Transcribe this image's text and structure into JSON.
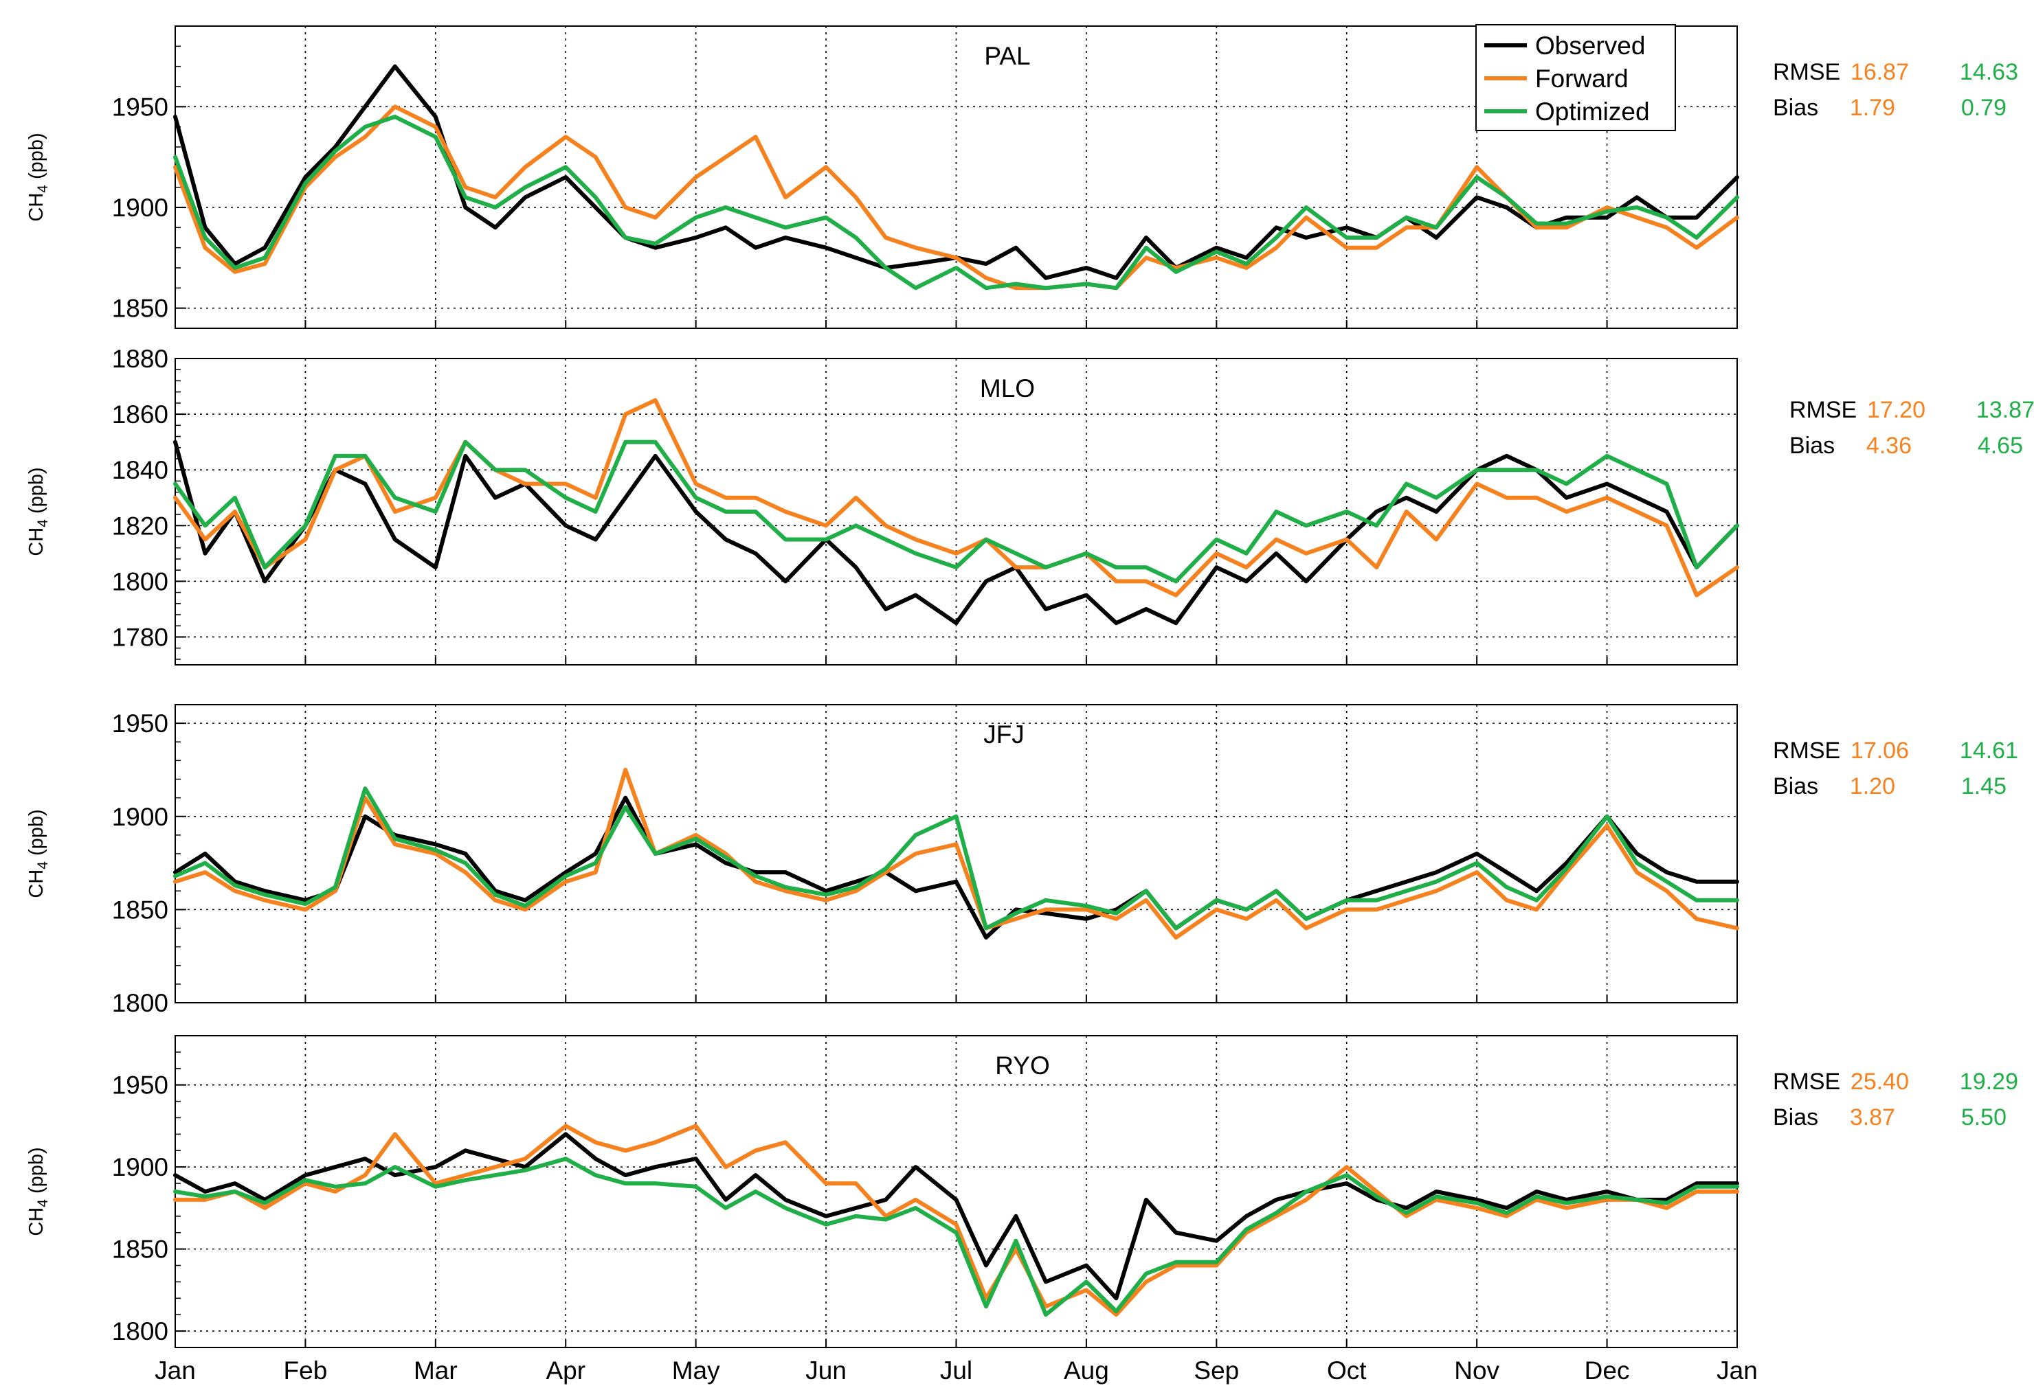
{
  "colors": {
    "observed": "#000000",
    "forward": "#f5821f",
    "optimized": "#1fae48"
  },
  "legend": {
    "observed": "Observed",
    "forward": "Forward",
    "optimized": "Optimized"
  },
  "stats_labels": {
    "rmse": "RMSE",
    "bias": "Bias"
  },
  "ylabel_prefix": "CH",
  "ylabel_sub": "4",
  "ylabel_suffix": " (ppb)",
  "chart_data": [
    {
      "type": "line",
      "title": "PAL",
      "x": [
        "Jan 1",
        "Jan 8",
        "Jan 15",
        "Jan 22",
        "Feb 1",
        "Feb 8",
        "Feb 15",
        "Feb 22",
        "Mar 1",
        "Mar 8",
        "Mar 15",
        "Mar 22",
        "Apr 1",
        "Apr 8",
        "Apr 15",
        "Apr 22",
        "May 1",
        "May 8",
        "May 15",
        "May 22",
        "Jun 1",
        "Jun 8",
        "Jun 15",
        "Jun 22",
        "Jul 1",
        "Jul 8",
        "Jul 15",
        "Jul 22",
        "Aug 1",
        "Aug 8",
        "Aug 15",
        "Aug 22",
        "Sep 1",
        "Sep 8",
        "Sep 15",
        "Sep 22",
        "Oct 1",
        "Oct 8",
        "Oct 15",
        "Oct 22",
        "Nov 1",
        "Nov 8",
        "Nov 15",
        "Nov 22",
        "Dec 1",
        "Dec 8",
        "Dec 15",
        "Dec 22",
        "Dec 31"
      ],
      "series": [
        {
          "name": "Observed",
          "values": [
            1945,
            1890,
            1872,
            1880,
            1915,
            1930,
            1950,
            1970,
            1945,
            1900,
            1890,
            1905,
            1915,
            1900,
            1885,
            1880,
            1885,
            1890,
            1880,
            1885,
            1880,
            1875,
            1870,
            1872,
            1875,
            1872,
            1880,
            1865,
            1870,
            1865,
            1885,
            1870,
            1880,
            1875,
            1890,
            1885,
            1890,
            1885,
            1895,
            1885,
            1905,
            1900,
            1890,
            1895,
            1895,
            1905,
            1895,
            1895,
            1915
          ]
        },
        {
          "name": "Forward",
          "values": [
            1920,
            1880,
            1868,
            1872,
            1910,
            1925,
            1935,
            1950,
            1940,
            1910,
            1905,
            1920,
            1935,
            1925,
            1900,
            1895,
            1915,
            1925,
            1935,
            1905,
            1920,
            1905,
            1885,
            1880,
            1875,
            1865,
            1860,
            1860,
            1862,
            1860,
            1875,
            1870,
            1875,
            1870,
            1880,
            1895,
            1880,
            1880,
            1890,
            1890,
            1920,
            1905,
            1890,
            1890,
            1900,
            1895,
            1890,
            1880,
            1895
          ]
        },
        {
          "name": "Optimized",
          "values": [
            1925,
            1885,
            1870,
            1875,
            1912,
            1928,
            1940,
            1945,
            1935,
            1905,
            1900,
            1910,
            1920,
            1905,
            1885,
            1882,
            1895,
            1900,
            1895,
            1890,
            1895,
            1885,
            1870,
            1860,
            1870,
            1860,
            1862,
            1860,
            1862,
            1860,
            1880,
            1868,
            1878,
            1872,
            1885,
            1900,
            1885,
            1885,
            1895,
            1890,
            1915,
            1905,
            1892,
            1892,
            1898,
            1900,
            1895,
            1885,
            1905
          ]
        }
      ],
      "ylim": [
        1840,
        1990
      ],
      "yticks": [
        1850,
        1900,
        1950
      ],
      "stats": {
        "rmse_forward": "16.87",
        "rmse_optimized": "14.63",
        "bias_forward": "1.79",
        "bias_optimized": "0.79"
      }
    },
    {
      "type": "line",
      "title": "MLO",
      "x": [
        "Jan 1",
        "Jan 8",
        "Jan 15",
        "Jan 22",
        "Feb 1",
        "Feb 8",
        "Feb 15",
        "Feb 22",
        "Mar 1",
        "Mar 8",
        "Mar 15",
        "Mar 22",
        "Apr 1",
        "Apr 8",
        "Apr 15",
        "Apr 22",
        "May 1",
        "May 8",
        "May 15",
        "May 22",
        "Jun 1",
        "Jun 8",
        "Jun 15",
        "Jun 22",
        "Jul 1",
        "Jul 8",
        "Jul 15",
        "Jul 22",
        "Aug 1",
        "Aug 8",
        "Aug 15",
        "Aug 22",
        "Sep 1",
        "Sep 8",
        "Sep 15",
        "Sep 22",
        "Oct 1",
        "Oct 8",
        "Oct 15",
        "Oct 22",
        "Nov 1",
        "Nov 8",
        "Nov 15",
        "Nov 22",
        "Dec 1",
        "Dec 8",
        "Dec 15",
        "Dec 22",
        "Dec 31"
      ],
      "series": [
        {
          "name": "Observed",
          "values": [
            1850,
            1810,
            1825,
            1800,
            1820,
            1840,
            1835,
            1815,
            1805,
            1845,
            1830,
            1835,
            1820,
            1815,
            1830,
            1845,
            1825,
            1815,
            1810,
            1800,
            1815,
            1805,
            1790,
            1795,
            1785,
            1800,
            1805,
            1790,
            1795,
            1785,
            1790,
            1785,
            1805,
            1800,
            1810,
            1800,
            1815,
            1825,
            1830,
            1825,
            1840,
            1845,
            1840,
            1830,
            1835,
            1830,
            1825,
            1805,
            1820
          ]
        },
        {
          "name": "Forward",
          "values": [
            1830,
            1815,
            1825,
            1805,
            1815,
            1840,
            1845,
            1825,
            1830,
            1850,
            1840,
            1835,
            1835,
            1830,
            1860,
            1865,
            1835,
            1830,
            1830,
            1825,
            1820,
            1830,
            1820,
            1815,
            1810,
            1815,
            1805,
            1805,
            1810,
            1800,
            1800,
            1795,
            1810,
            1805,
            1815,
            1810,
            1815,
            1805,
            1825,
            1815,
            1835,
            1830,
            1830,
            1825,
            1830,
            1825,
            1820,
            1795,
            1805
          ]
        },
        {
          "name": "Optimized",
          "values": [
            1835,
            1820,
            1830,
            1805,
            1820,
            1845,
            1845,
            1830,
            1825,
            1850,
            1840,
            1840,
            1830,
            1825,
            1850,
            1850,
            1830,
            1825,
            1825,
            1815,
            1815,
            1820,
            1815,
            1810,
            1805,
            1815,
            1810,
            1805,
            1810,
            1805,
            1805,
            1800,
            1815,
            1810,
            1825,
            1820,
            1825,
            1820,
            1835,
            1830,
            1840,
            1840,
            1840,
            1835,
            1845,
            1840,
            1835,
            1805,
            1820
          ]
        }
      ],
      "ylim": [
        1770,
        1880
      ],
      "yticks": [
        1780,
        1800,
        1820,
        1840,
        1860,
        1880
      ],
      "stats": {
        "rmse_forward": "17.20",
        "rmse_optimized": "13.87",
        "bias_forward": "4.36",
        "bias_optimized": "4.65"
      }
    },
    {
      "type": "line",
      "title": "JFJ",
      "x": [
        "Jan 1",
        "Jan 8",
        "Jan 15",
        "Jan 22",
        "Feb 1",
        "Feb 8",
        "Feb 15",
        "Feb 22",
        "Mar 1",
        "Mar 8",
        "Mar 15",
        "Mar 22",
        "Apr 1",
        "Apr 8",
        "Apr 15",
        "Apr 22",
        "May 1",
        "May 8",
        "May 15",
        "May 22",
        "Jun 1",
        "Jun 8",
        "Jun 15",
        "Jun 22",
        "Jul 1",
        "Jul 8",
        "Jul 15",
        "Jul 22",
        "Aug 1",
        "Aug 8",
        "Aug 15",
        "Aug 22",
        "Sep 1",
        "Sep 8",
        "Sep 15",
        "Sep 22",
        "Oct 1",
        "Oct 8",
        "Oct 15",
        "Oct 22",
        "Nov 1",
        "Nov 8",
        "Nov 15",
        "Nov 22",
        "Dec 1",
        "Dec 8",
        "Dec 15",
        "Dec 22",
        "Dec 31"
      ],
      "series": [
        {
          "name": "Observed",
          "values": [
            1870,
            1880,
            1865,
            1860,
            1855,
            1860,
            1900,
            1890,
            1885,
            1880,
            1860,
            1855,
            1870,
            1880,
            1910,
            1880,
            1885,
            1875,
            1870,
            1870,
            1860,
            1865,
            1870,
            1860,
            1865,
            1835,
            1850,
            1848,
            1845,
            1850,
            1860,
            1840,
            1855,
            1850,
            1860,
            1845,
            1855,
            1860,
            1865,
            1870,
            1880,
            1870,
            1860,
            1875,
            1900,
            1880,
            1870,
            1865,
            1865
          ]
        },
        {
          "name": "Forward",
          "values": [
            1865,
            1870,
            1860,
            1855,
            1850,
            1860,
            1910,
            1885,
            1880,
            1870,
            1855,
            1850,
            1865,
            1870,
            1925,
            1880,
            1890,
            1880,
            1865,
            1860,
            1855,
            1860,
            1870,
            1880,
            1885,
            1840,
            1845,
            1850,
            1850,
            1845,
            1855,
            1835,
            1850,
            1845,
            1855,
            1840,
            1850,
            1850,
            1855,
            1860,
            1870,
            1855,
            1850,
            1870,
            1895,
            1870,
            1860,
            1845,
            1840
          ]
        },
        {
          "name": "Optimized",
          "values": [
            1868,
            1875,
            1863,
            1858,
            1853,
            1862,
            1915,
            1888,
            1882,
            1875,
            1858,
            1852,
            1868,
            1875,
            1905,
            1880,
            1888,
            1878,
            1868,
            1862,
            1858,
            1862,
            1872,
            1890,
            1900,
            1840,
            1848,
            1855,
            1852,
            1848,
            1860,
            1840,
            1855,
            1850,
            1860,
            1845,
            1855,
            1855,
            1860,
            1865,
            1875,
            1862,
            1855,
            1872,
            1900,
            1875,
            1865,
            1855,
            1855
          ]
        }
      ],
      "ylim": [
        1800,
        1960
      ],
      "yticks": [
        1800,
        1850,
        1900,
        1950
      ],
      "stats": {
        "rmse_forward": "17.06",
        "rmse_optimized": "14.61",
        "bias_forward": "1.20",
        "bias_optimized": "1.45"
      }
    },
    {
      "type": "line",
      "title": "RYO",
      "x": [
        "Jan 1",
        "Jan 8",
        "Jan 15",
        "Jan 22",
        "Feb 1",
        "Feb 8",
        "Feb 15",
        "Feb 22",
        "Mar 1",
        "Mar 8",
        "Mar 15",
        "Mar 22",
        "Apr 1",
        "Apr 8",
        "Apr 15",
        "Apr 22",
        "May 1",
        "May 8",
        "May 15",
        "May 22",
        "Jun 1",
        "Jun 8",
        "Jun 15",
        "Jun 22",
        "Jul 1",
        "Jul 8",
        "Jul 15",
        "Jul 22",
        "Aug 1",
        "Aug 8",
        "Aug 15",
        "Aug 22",
        "Sep 1",
        "Sep 8",
        "Sep 15",
        "Sep 22",
        "Oct 1",
        "Oct 8",
        "Oct 15",
        "Oct 22",
        "Nov 1",
        "Nov 8",
        "Nov 15",
        "Nov 22",
        "Dec 1",
        "Dec 8",
        "Dec 15",
        "Dec 22",
        "Dec 31"
      ],
      "series": [
        {
          "name": "Observed",
          "values": [
            1895,
            1885,
            1890,
            1880,
            1895,
            1900,
            1905,
            1895,
            1900,
            1910,
            1905,
            1900,
            1920,
            1905,
            1895,
            1900,
            1905,
            1880,
            1895,
            1880,
            1870,
            1875,
            1880,
            1900,
            1880,
            1840,
            1870,
            1830,
            1840,
            1820,
            1880,
            1860,
            1855,
            1870,
            1880,
            1885,
            1890,
            1880,
            1875,
            1885,
            1880,
            1875,
            1885,
            1880,
            1885,
            1880,
            1880,
            1890,
            1890
          ]
        },
        {
          "name": "Forward",
          "values": [
            1880,
            1880,
            1885,
            1875,
            1890,
            1885,
            1895,
            1920,
            1890,
            1895,
            1900,
            1905,
            1925,
            1915,
            1910,
            1915,
            1925,
            1900,
            1910,
            1915,
            1890,
            1890,
            1870,
            1880,
            1865,
            1820,
            1850,
            1815,
            1825,
            1810,
            1830,
            1840,
            1840,
            1860,
            1870,
            1880,
            1900,
            1885,
            1870,
            1880,
            1875,
            1870,
            1880,
            1875,
            1880,
            1880,
            1875,
            1885,
            1885
          ]
        },
        {
          "name": "Optimized",
          "values": [
            1885,
            1882,
            1885,
            1878,
            1892,
            1888,
            1890,
            1900,
            1888,
            1892,
            1895,
            1898,
            1905,
            1895,
            1890,
            1890,
            1888,
            1875,
            1885,
            1875,
            1865,
            1870,
            1868,
            1875,
            1860,
            1815,
            1855,
            1810,
            1830,
            1812,
            1835,
            1842,
            1842,
            1862,
            1872,
            1885,
            1895,
            1882,
            1872,
            1882,
            1878,
            1872,
            1882,
            1878,
            1882,
            1880,
            1878,
            1888,
            1888
          ]
        }
      ],
      "ylim": [
        1790,
        1980
      ],
      "yticks": [
        1800,
        1850,
        1900,
        1950
      ],
      "stats": {
        "rmse_forward": "25.40",
        "rmse_optimized": "19.29",
        "bias_forward": "3.87",
        "bias_optimized": "5.50"
      }
    }
  ],
  "xticks": [
    "Jan",
    "Feb",
    "Mar",
    "Apr",
    "May",
    "Jun",
    "Jul",
    "Aug",
    "Sep",
    "Oct",
    "Nov",
    "Dec",
    "Jan"
  ]
}
